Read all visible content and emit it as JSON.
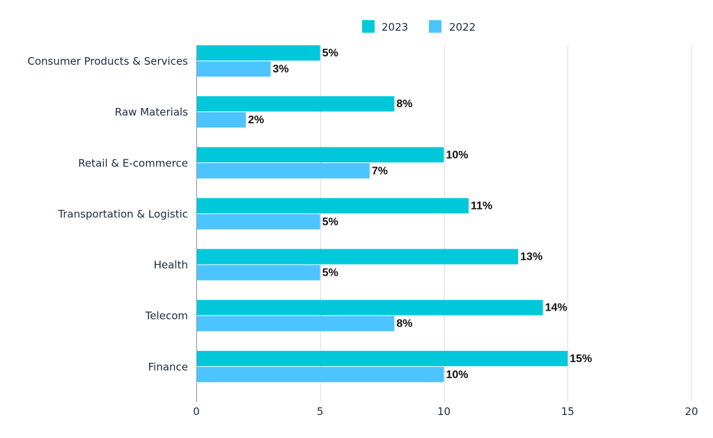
{
  "chart_data": {
    "type": "bar",
    "orientation": "horizontal",
    "title": "",
    "xlabel": "",
    "ylabel": "",
    "xlim": [
      0,
      20
    ],
    "x_ticks": [
      "0",
      "5",
      "10",
      "15",
      "20"
    ],
    "grid": true,
    "legend_position": "top-center",
    "categories": [
      "Consumer Products & Services",
      "Raw Materials",
      "Retail & E-commerce",
      "Transportation & Logistic",
      "Health",
      "Telecom",
      "Finance"
    ],
    "series": [
      {
        "name": "2023",
        "color": "#00c8db",
        "values": [
          5,
          8,
          10,
          11,
          13,
          14,
          15
        ],
        "labels": [
          "5%",
          "8%",
          "10%",
          "11%",
          "13%",
          "14%",
          "15%"
        ]
      },
      {
        "name": "2022",
        "color": "#4cc4ff",
        "values": [
          3,
          2,
          7,
          5,
          5,
          8,
          10
        ],
        "labels": [
          "3%",
          "2%",
          "7%",
          "5%",
          "5%",
          "8%",
          "10%"
        ]
      }
    ]
  }
}
